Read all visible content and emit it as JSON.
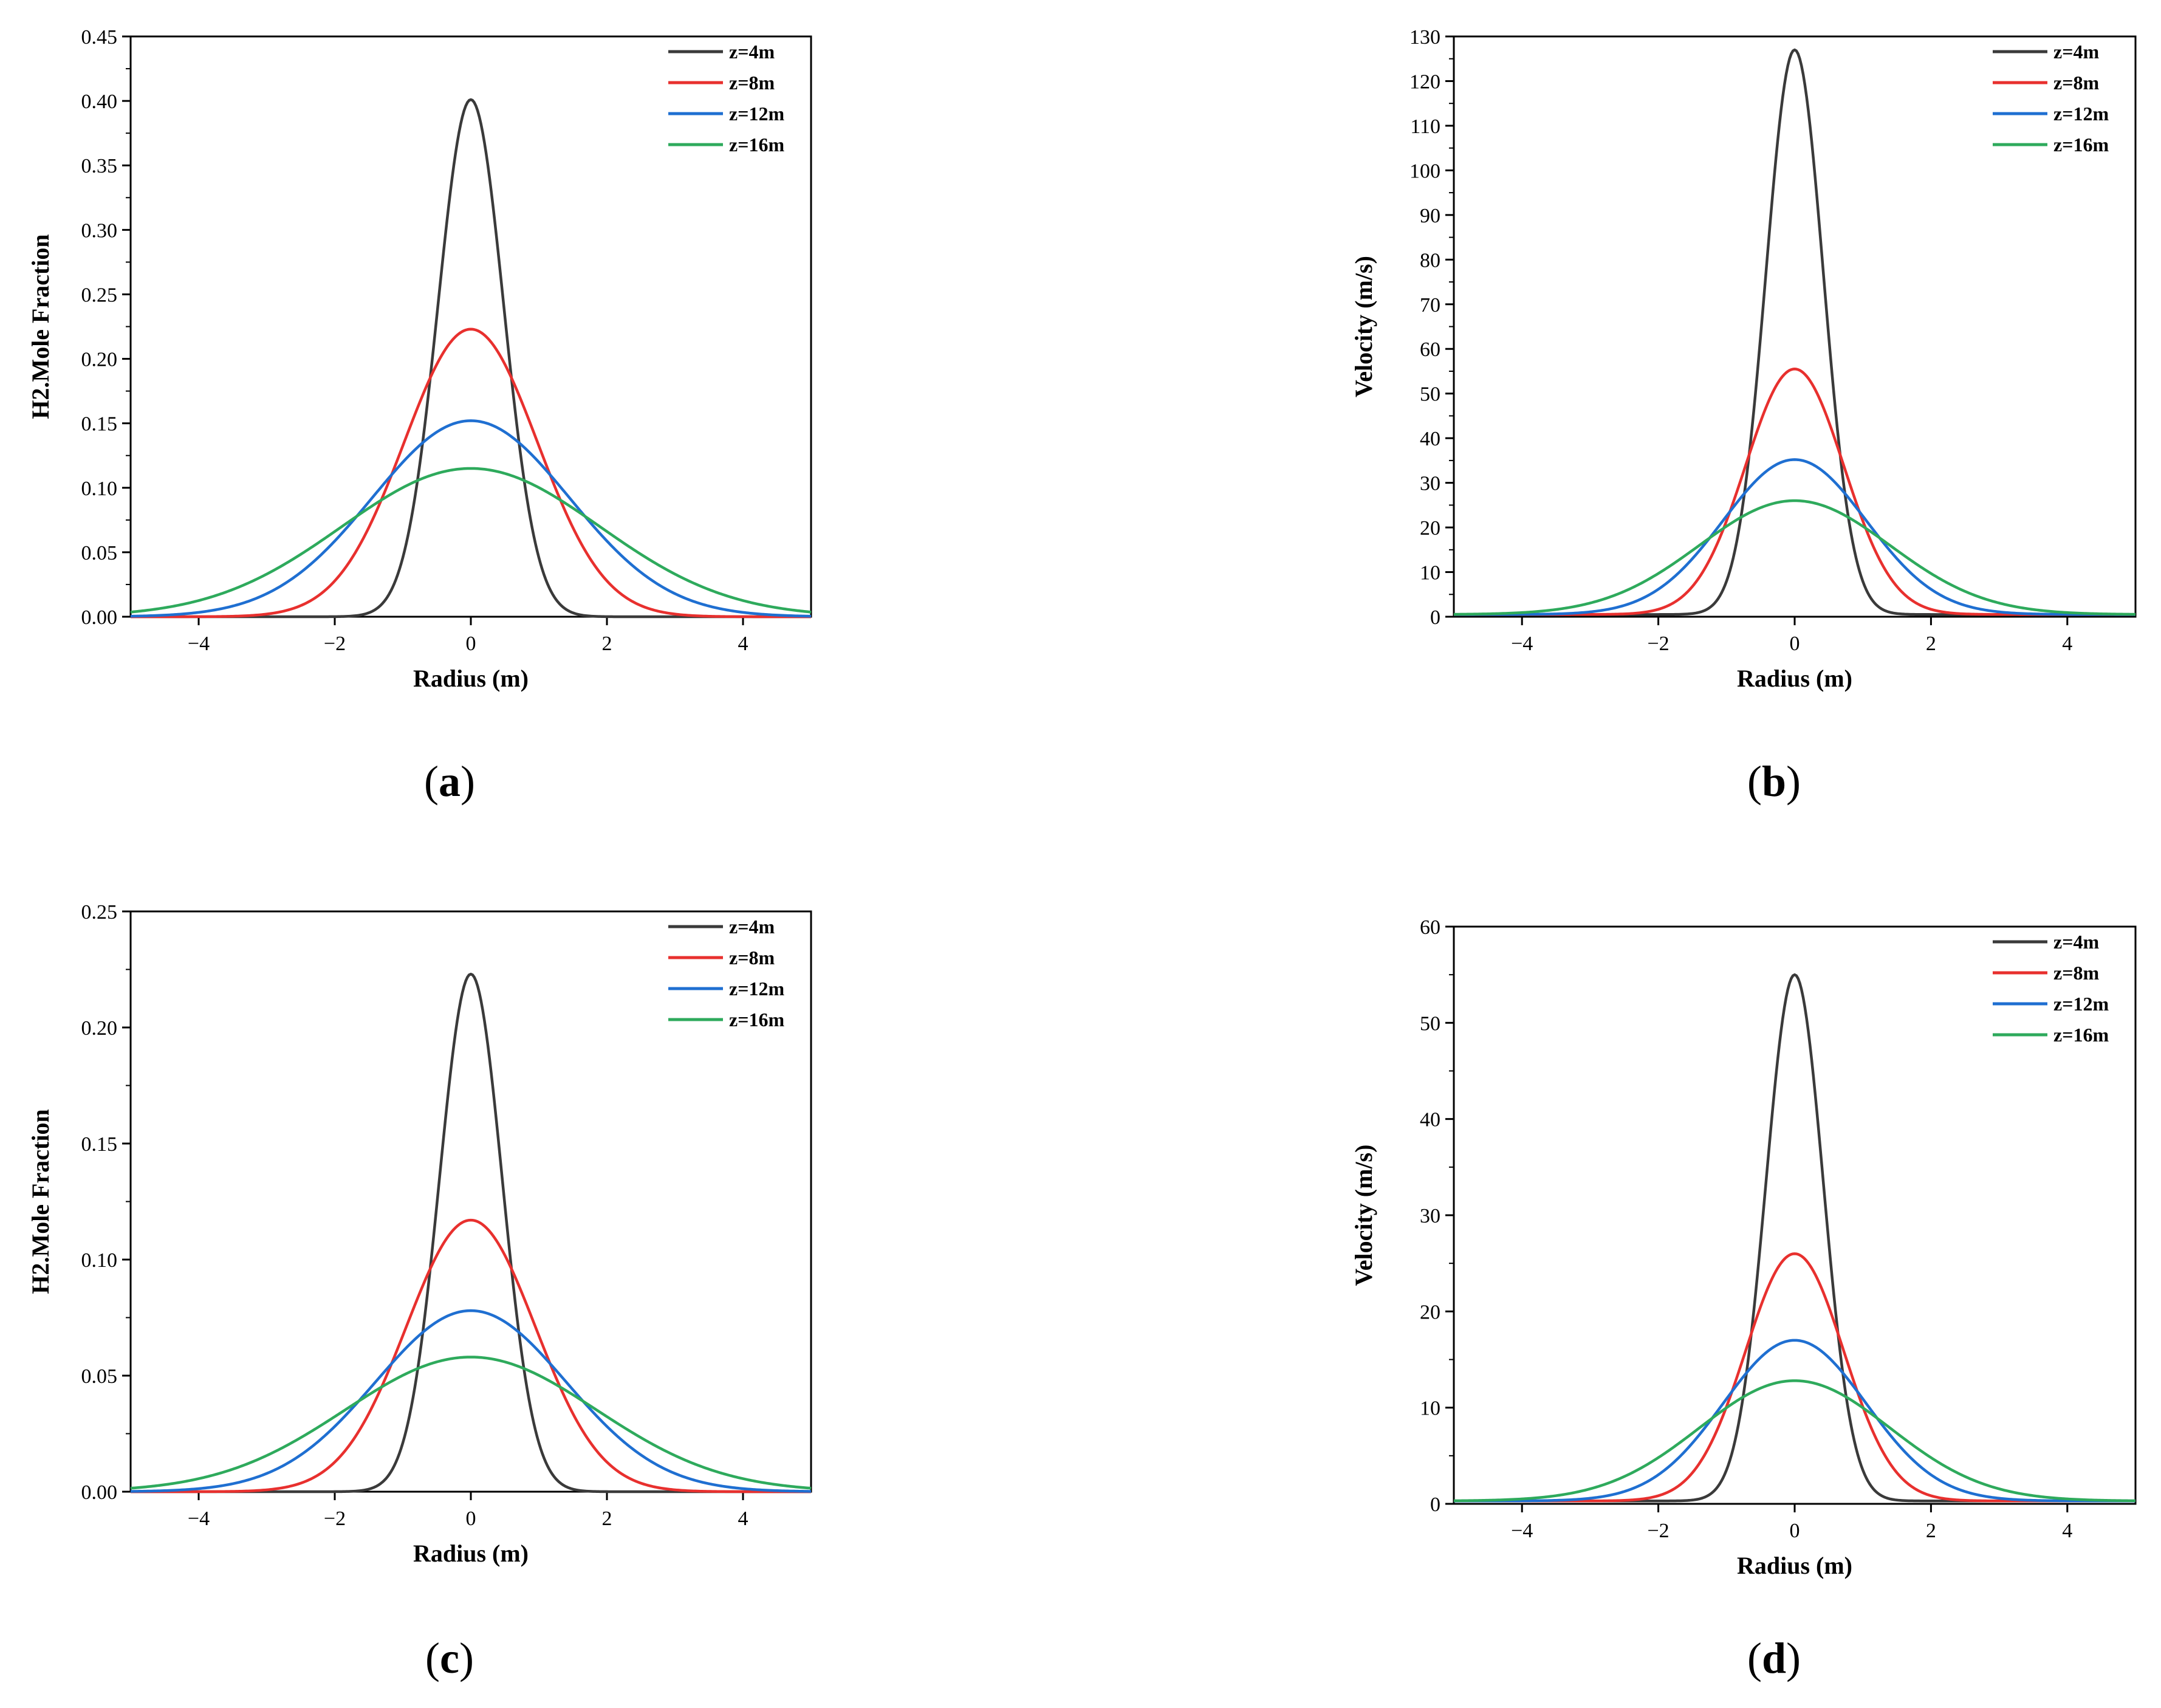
{
  "chart_data": [
    {
      "id": "a",
      "type": "line",
      "caption": "a",
      "xlabel": "Radius (m)",
      "ylabel": "H2.Mole Fraction",
      "xlim": [
        -5,
        5
      ],
      "ylim": [
        0,
        0.45
      ],
      "xticks": [
        -4,
        -2,
        0,
        2,
        4
      ],
      "xtick_labels": [
        "−4",
        "−2",
        "0",
        "2",
        "4"
      ],
      "yticks": [
        0,
        0.05,
        0.1,
        0.15,
        0.2,
        0.25,
        0.3,
        0.35,
        0.4,
        0.45
      ],
      "ytick_labels": [
        "0.00",
        "0.05",
        "0.10",
        "0.15",
        "0.20",
        "0.25",
        "0.30",
        "0.35",
        "0.40",
        "0.45"
      ],
      "legend_position": "top-right",
      "series": [
        {
          "name": "z=4m",
          "color": "#3a3a3a",
          "peak": 0.401,
          "width": 0.48,
          "base": 0
        },
        {
          "name": "z=8m",
          "color": "#e8302e",
          "peak": 0.223,
          "width": 0.98,
          "base": 0
        },
        {
          "name": "z=12m",
          "color": "#1f6fd1",
          "peak": 0.152,
          "width": 1.45,
          "base": 0
        },
        {
          "name": "z=16m",
          "color": "#2eaa5c",
          "peak": 0.115,
          "width": 1.9,
          "base": 0
        }
      ]
    },
    {
      "id": "b",
      "type": "line",
      "caption": "b",
      "xlabel": "Radius (m)",
      "ylabel": "Velocity (m/s)",
      "xlim": [
        -5,
        5
      ],
      "ylim": [
        0,
        130
      ],
      "xticks": [
        -4,
        -2,
        0,
        2,
        4
      ],
      "xtick_labels": [
        "−4",
        "−2",
        "0",
        "2",
        "4"
      ],
      "yticks": [
        0,
        10,
        20,
        30,
        40,
        50,
        60,
        70,
        80,
        90,
        100,
        110,
        120,
        130
      ],
      "ytick_labels": [
        "0",
        "10",
        "20",
        "30",
        "40",
        "50",
        "60",
        "70",
        "80",
        "90",
        "100",
        "110",
        "120",
        "130"
      ],
      "legend_position": "top-right",
      "series": [
        {
          "name": "z=4m",
          "color": "#3a3a3a",
          "peak": 127,
          "width": 0.42,
          "base": 0.5
        },
        {
          "name": "z=8m",
          "color": "#e8302e",
          "peak": 55.5,
          "width": 0.72,
          "base": 0.5
        },
        {
          "name": "z=12m",
          "color": "#1f6fd1",
          "peak": 35.2,
          "width": 1.05,
          "base": 0.5
        },
        {
          "name": "z=16m",
          "color": "#2eaa5c",
          "peak": 26,
          "width": 1.4,
          "base": 0.5
        }
      ]
    },
    {
      "id": "c",
      "type": "line",
      "caption": "c",
      "xlabel": "Radius (m)",
      "ylabel": "H2.Mole Fraction",
      "xlim": [
        -5,
        5
      ],
      "ylim": [
        0,
        0.25
      ],
      "xticks": [
        -4,
        -2,
        0,
        2,
        4
      ],
      "xtick_labels": [
        "−4",
        "−2",
        "0",
        "2",
        "4"
      ],
      "yticks": [
        0,
        0.05,
        0.1,
        0.15,
        0.2,
        0.25
      ],
      "ytick_labels": [
        "0.00",
        "0.05",
        "0.10",
        "0.15",
        "0.20",
        "0.25"
      ],
      "legend_position": "top-right",
      "series": [
        {
          "name": "z=4m",
          "color": "#3a3a3a",
          "peak": 0.223,
          "width": 0.46,
          "base": 0
        },
        {
          "name": "z=8m",
          "color": "#e8302e",
          "peak": 0.117,
          "width": 0.95,
          "base": 0
        },
        {
          "name": "z=12m",
          "color": "#1f6fd1",
          "peak": 0.078,
          "width": 1.4,
          "base": 0
        },
        {
          "name": "z=16m",
          "color": "#2eaa5c",
          "peak": 0.058,
          "width": 1.85,
          "base": 0
        }
      ]
    },
    {
      "id": "d",
      "type": "line",
      "caption": "d",
      "xlabel": "Radius (m)",
      "ylabel": "Velocity (m/s)",
      "xlim": [
        -5,
        5
      ],
      "ylim": [
        0,
        60
      ],
      "xticks": [
        -4,
        -2,
        0,
        2,
        4
      ],
      "xtick_labels": [
        "−4",
        "−2",
        "0",
        "2",
        "4"
      ],
      "yticks": [
        0,
        10,
        20,
        30,
        40,
        50,
        60
      ],
      "ytick_labels": [
        "0",
        "10",
        "20",
        "30",
        "40",
        "50",
        "60"
      ],
      "legend_position": "top-right",
      "series": [
        {
          "name": "z=4m",
          "color": "#3a3a3a",
          "peak": 55,
          "width": 0.42,
          "base": 0.3
        },
        {
          "name": "z=8m",
          "color": "#e8302e",
          "peak": 26,
          "width": 0.72,
          "base": 0.3
        },
        {
          "name": "z=12m",
          "color": "#1f6fd1",
          "peak": 17,
          "width": 1.05,
          "base": 0.3
        },
        {
          "name": "z=16m",
          "color": "#2eaa5c",
          "peak": 12.8,
          "width": 1.4,
          "base": 0.3
        }
      ]
    }
  ]
}
